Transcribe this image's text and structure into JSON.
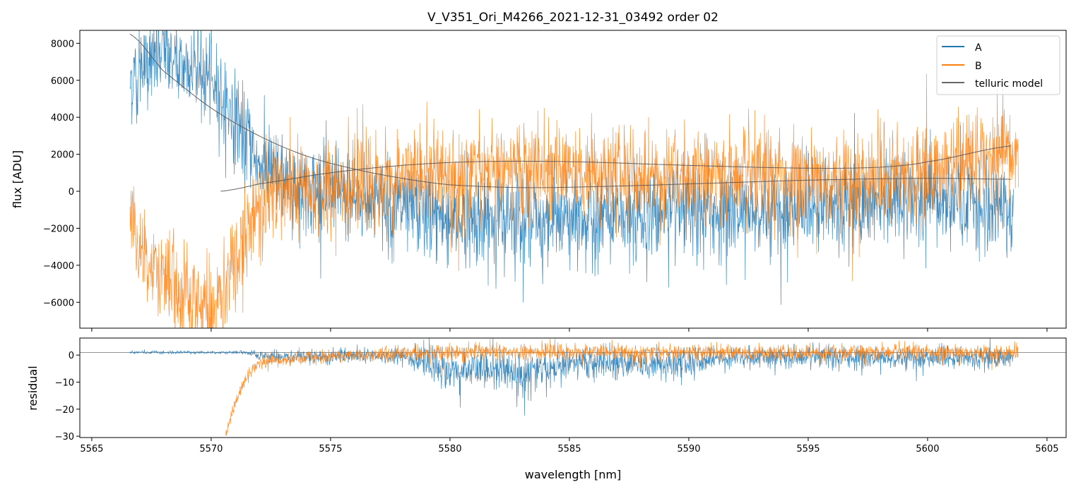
{
  "chart_data": [
    {
      "type": "line",
      "title": "V_V351_Ori_M4266_2021-12-31_03492  order 02",
      "xlabel": "",
      "ylabel": "flux [ADU]",
      "xlim": [
        5564.5,
        5605.8
      ],
      "ylim": [
        -7400,
        8700
      ],
      "xticks": [
        5565,
        5570,
        5575,
        5580,
        5585,
        5590,
        5595,
        5600,
        5605
      ],
      "yticks": [
        8000,
        6000,
        4000,
        2000,
        0,
        -2000,
        -4000,
        -6000
      ],
      "ytick_labels": [
        "8000",
        "6000",
        "4000",
        "2000",
        "0",
        "−2000",
        "−4000",
        "−6000"
      ],
      "legend": {
        "placement": "top-right",
        "entries": [
          "A",
          "B",
          "telluric model"
        ]
      },
      "series": [
        {
          "name": "A",
          "color": "#1f77b4",
          "kind": "noisy",
          "x_range": [
            5566.6,
            5603.6
          ],
          "noise_std": 1200,
          "mean": [
            [
              5566.6,
              6000
            ],
            [
              5568,
              7500
            ],
            [
              5570,
              6000
            ],
            [
              5571,
              4000
            ],
            [
              5572,
              1500
            ],
            [
              5573,
              500
            ],
            [
              5575,
              0
            ],
            [
              5580,
              -1500
            ],
            [
              5585,
              -1500
            ],
            [
              5590,
              -1200
            ],
            [
              5595,
              -800
            ],
            [
              5600,
              -600
            ],
            [
              5603.6,
              -1000
            ]
          ]
        },
        {
          "name": "B",
          "color": "#ff7f0e",
          "kind": "noisy",
          "x_range": [
            5566.6,
            5603.8
          ],
          "noise_std": 1300,
          "mean": [
            [
              5566.6,
              -1000
            ],
            [
              5567,
              -3000
            ],
            [
              5568,
              -4500
            ],
            [
              5569,
              -6000
            ],
            [
              5570,
              -6500
            ],
            [
              5571,
              -4000
            ],
            [
              5572,
              -500
            ],
            [
              5575,
              0
            ],
            [
              5580,
              1000
            ],
            [
              5585,
              1200
            ],
            [
              5590,
              800
            ],
            [
              5595,
              700
            ],
            [
              5600,
              1000
            ],
            [
              5603.8,
              2000
            ]
          ]
        },
        {
          "name": "telluric model",
          "color": "#555555",
          "kind": "smooth",
          "points": [
            [
              5566.6,
              8500
            ],
            [
              5568,
              6500
            ],
            [
              5570,
              4500
            ],
            [
              5572,
              3000
            ],
            [
              5574,
              1900
            ],
            [
              5576,
              1200
            ],
            [
              5578,
              700
            ],
            [
              5580,
              350
            ],
            [
              5583,
              200
            ],
            [
              5586,
              250
            ],
            [
              5590,
              400
            ],
            [
              5595,
              600
            ],
            [
              5600,
              700
            ],
            [
              5603.5,
              650
            ]
          ]
        },
        {
          "name": "telluric model",
          "color": "#555555",
          "kind": "smooth",
          "points": [
            [
              5570.4,
              0
            ],
            [
              5572,
              400
            ],
            [
              5575,
              1000
            ],
            [
              5578,
              1400
            ],
            [
              5581,
              1600
            ],
            [
              5585,
              1600
            ],
            [
              5590,
              1400
            ],
            [
              5595,
              1250
            ],
            [
              5598,
              1300
            ],
            [
              5600,
              1600
            ],
            [
              5603.5,
              2450
            ]
          ]
        }
      ]
    },
    {
      "type": "line",
      "xlabel": "wavelength [nm]",
      "ylabel": "residual",
      "xlim": [
        5564.5,
        5605.8
      ],
      "ylim": [
        -30.5,
        6.3
      ],
      "xticks": [
        5565,
        5570,
        5575,
        5580,
        5585,
        5590,
        5595,
        5600,
        5605
      ],
      "yticks": [
        0,
        -10,
        -20,
        -30
      ],
      "ytick_labels": [
        "0",
        "−10",
        "−20",
        "−30"
      ],
      "hline": 1,
      "series": [
        {
          "name": "A",
          "color": "#1f77b4",
          "x_range": [
            5566.6,
            5603.6
          ],
          "mean": [
            [
              5566.6,
              1
            ],
            [
              5571.5,
              1
            ],
            [
              5572,
              -0.5
            ],
            [
              5578,
              -0.5
            ],
            [
              5580,
              -6
            ],
            [
              5584,
              -6
            ],
            [
              5585,
              -3
            ],
            [
              5590,
              -3
            ],
            [
              5591,
              -1
            ],
            [
              5603.6,
              -1
            ]
          ],
          "noise": [
            [
              5566.6,
              0.3
            ],
            [
              5571.5,
              0.3
            ],
            [
              5572,
              1
            ],
            [
              5578,
              1.5
            ],
            [
              5580,
              4
            ],
            [
              5584,
              4
            ],
            [
              5585,
              3
            ],
            [
              5590,
              3
            ],
            [
              5591,
              2
            ],
            [
              5603.6,
              2
            ]
          ]
        },
        {
          "name": "B",
          "color": "#ff7f0e",
          "x_range": [
            5570.6,
            5603.8
          ],
          "mean": [
            [
              5570.6,
              -30
            ],
            [
              5571,
              -18
            ],
            [
              5571.5,
              -8
            ],
            [
              5572,
              -3
            ],
            [
              5574,
              -1
            ],
            [
              5576,
              0
            ],
            [
              5580,
              1
            ],
            [
              5603.8,
              1
            ]
          ],
          "noise": [
            [
              5570.6,
              1
            ],
            [
              5572,
              1.2
            ],
            [
              5576,
              1.2
            ],
            [
              5580,
              1.5
            ],
            [
              5603.8,
              1.5
            ]
          ]
        }
      ]
    }
  ]
}
